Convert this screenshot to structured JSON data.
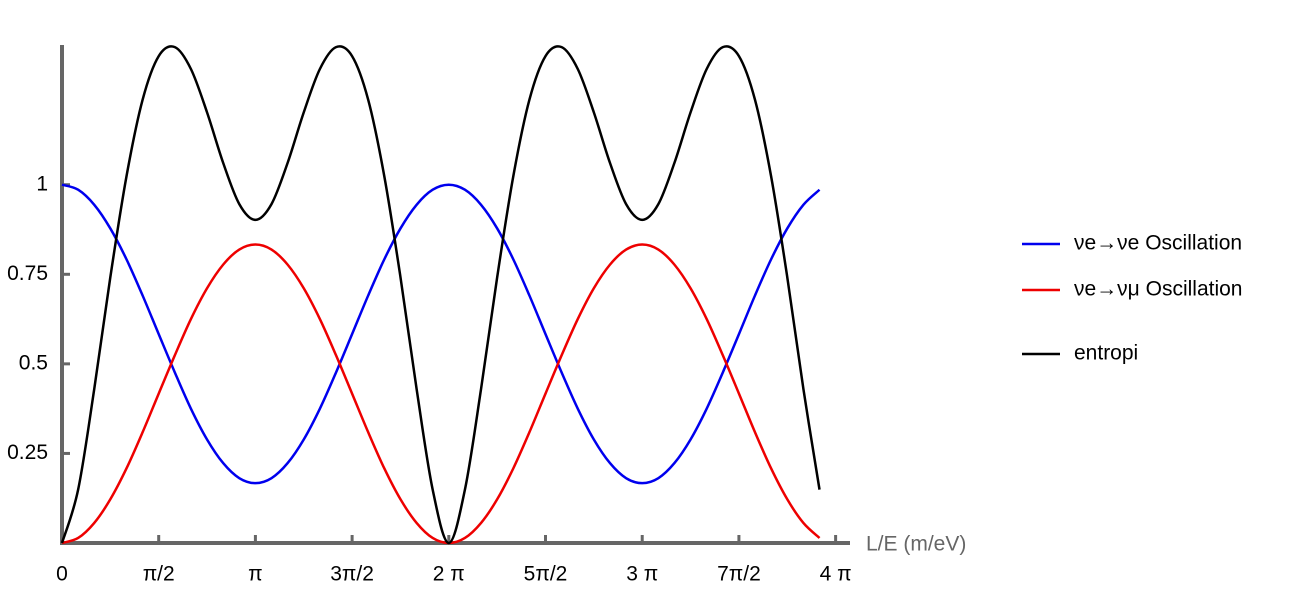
{
  "chart_data": {
    "type": "line",
    "x_label": "L/E (m/eV)",
    "x": [
      0,
      0.262,
      0.524,
      0.785,
      1.047,
      1.309,
      1.571,
      1.833,
      2.094,
      2.356,
      2.618,
      2.88,
      3.142,
      3.403,
      3.665,
      3.927,
      4.189,
      4.451,
      4.712,
      4.974,
      5.236,
      5.498,
      5.76,
      6.021,
      6.283,
      6.545,
      6.807,
      7.069,
      7.33,
      7.592,
      7.854,
      8.116,
      8.378,
      8.639,
      8.901,
      9.163,
      9.425,
      9.687,
      9.948,
      10.21,
      10.472,
      10.734,
      10.996,
      11.257,
      11.519,
      11.781,
      12.043,
      12.305
    ],
    "series": [
      {
        "name": "νe→νe Oscillation",
        "color": "#0000ee",
        "values": [
          1,
          0.986,
          0.944,
          0.878,
          0.792,
          0.691,
          0.583,
          0.476,
          0.375,
          0.289,
          0.223,
          0.181,
          0.167,
          0.181,
          0.223,
          0.289,
          0.375,
          0.476,
          0.583,
          0.691,
          0.792,
          0.878,
          0.944,
          0.986,
          1,
          0.986,
          0.944,
          0.878,
          0.792,
          0.691,
          0.583,
          0.476,
          0.375,
          0.289,
          0.223,
          0.181,
          0.167,
          0.181,
          0.223,
          0.289,
          0.375,
          0.476,
          0.583,
          0.691,
          0.792,
          0.878,
          0.944,
          0.986
        ]
      },
      {
        "name": "νe→νμ Oscillation",
        "color": "#ee0000",
        "values": [
          0,
          0.014,
          0.056,
          0.122,
          0.208,
          0.309,
          0.417,
          0.524,
          0.625,
          0.711,
          0.777,
          0.819,
          0.833,
          0.819,
          0.777,
          0.711,
          0.625,
          0.524,
          0.417,
          0.309,
          0.208,
          0.122,
          0.056,
          0.014,
          0,
          0.014,
          0.056,
          0.122,
          0.208,
          0.309,
          0.417,
          0.524,
          0.625,
          0.711,
          0.777,
          0.819,
          0.833,
          0.819,
          0.777,
          0.711,
          0.625,
          0.524,
          0.417,
          0.309,
          0.208,
          0.122,
          0.056,
          0.014
        ]
      },
      {
        "name": "entropi",
        "color": "#000000",
        "values": [
          0,
          0.149,
          0.43,
          0.742,
          1.023,
          1.237,
          1.359,
          1.384,
          1.323,
          1.202,
          1.061,
          0.946,
          0.902,
          0.946,
          1.061,
          1.202,
          1.323,
          1.384,
          1.359,
          1.237,
          1.023,
          0.742,
          0.43,
          0.149,
          0,
          0.149,
          0.43,
          0.742,
          1.023,
          1.237,
          1.359,
          1.384,
          1.323,
          1.202,
          1.061,
          0.946,
          0.902,
          0.946,
          1.061,
          1.202,
          1.323,
          1.384,
          1.359,
          1.237,
          1.023,
          0.742,
          0.43,
          0.149
        ]
      }
    ],
    "xlim": [
      0,
      12.8
    ],
    "ylim": [
      0,
      1.39
    ],
    "xticks": [
      0,
      {
        "value": 1.5708,
        "label": "π/2"
      },
      {
        "value": 3.1416,
        "label": "π"
      },
      {
        "value": 4.7124,
        "label": "3π/2"
      },
      {
        "value": 6.2832,
        "label": "2 π"
      },
      {
        "value": 7.854,
        "label": "5π/2"
      },
      {
        "value": 9.4248,
        "label": "3 π"
      },
      {
        "value": 10.9956,
        "label": "7π/2"
      },
      {
        "value": 12.5664,
        "label": "4 π"
      }
    ],
    "yticks": [
      0.25,
      0.5,
      0.75,
      1
    ],
    "legend": "right"
  }
}
